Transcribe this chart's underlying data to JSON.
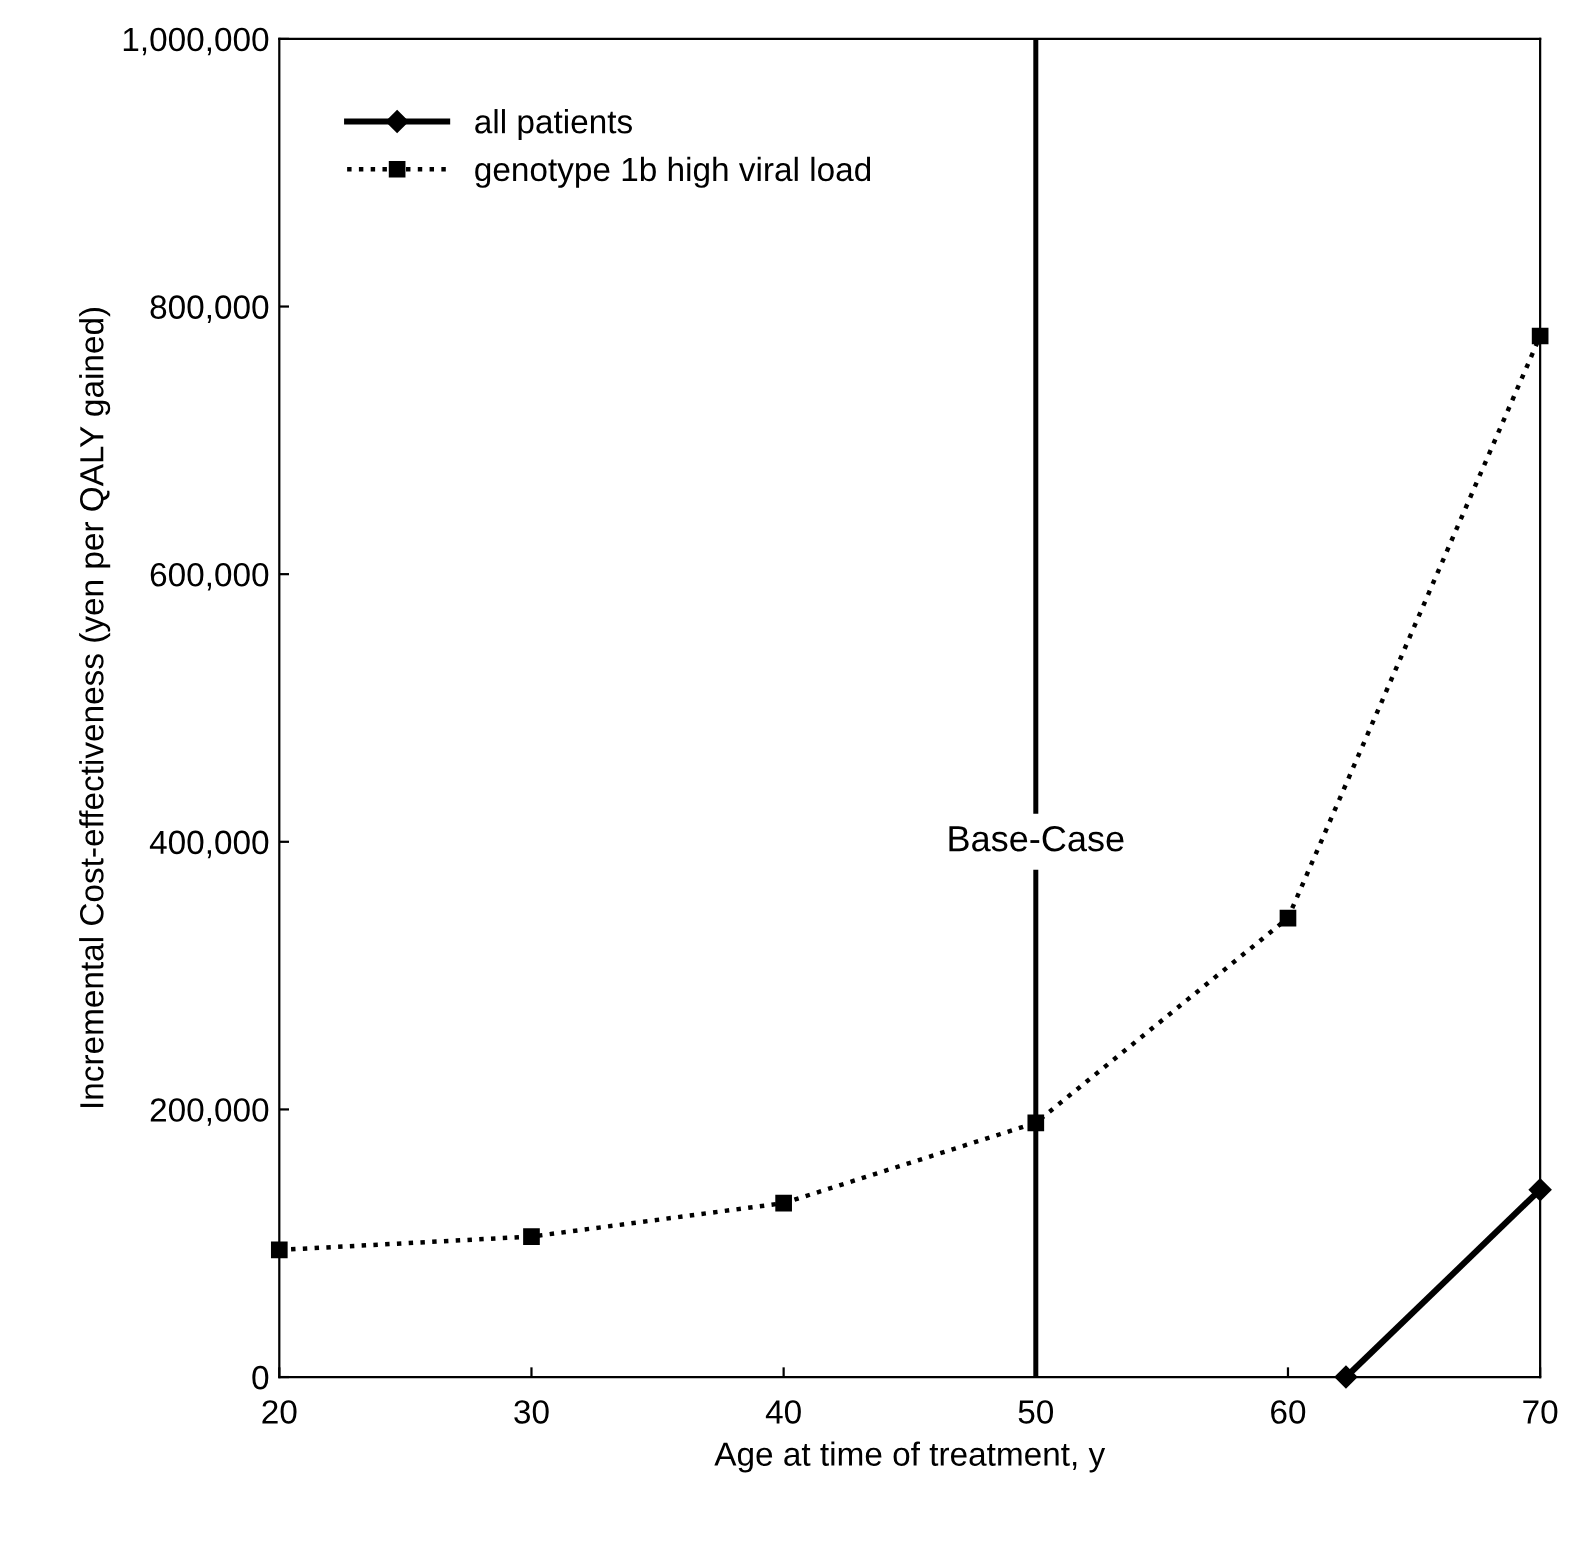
{
  "chart_data": {
    "type": "line",
    "xlabel": "Age at time of treatment, y",
    "ylabel": "Incremental Cost-effectiveness (yen per QALY gained)",
    "series": [
      {
        "name": "all patients",
        "color": "#000000",
        "x": [
          62.3,
          70
        ],
        "values": [
          0,
          140000
        ],
        "marker": "diamond",
        "line_style": "solid"
      },
      {
        "name": "genotype 1b high viral load",
        "color": "#000000",
        "x": [
          20,
          30,
          40,
          50,
          60,
          70
        ],
        "values": [
          95000,
          105000,
          130000,
          190000,
          343000,
          778000
        ],
        "marker": "square",
        "line_style": "dotted"
      }
    ],
    "xlim": [
      20,
      70
    ],
    "xticks": [
      20,
      30,
      40,
      50,
      60,
      70
    ],
    "ylim": [
      0,
      1000000
    ],
    "yticks": [
      {
        "value": 0,
        "label": "0"
      },
      {
        "value": 200000,
        "label": "200,000"
      },
      {
        "value": 400000,
        "label": "400,000"
      },
      {
        "value": 600000,
        "label": "600,000"
      },
      {
        "value": 800000,
        "label": "800,000"
      },
      {
        "value": 1000000,
        "label": "1,000,000"
      }
    ],
    "ref_lines": [
      {
        "axis": "x",
        "value": 50,
        "label": "Base-Case",
        "color": "#000000"
      }
    ],
    "legend": "top left",
    "grid": false
  }
}
